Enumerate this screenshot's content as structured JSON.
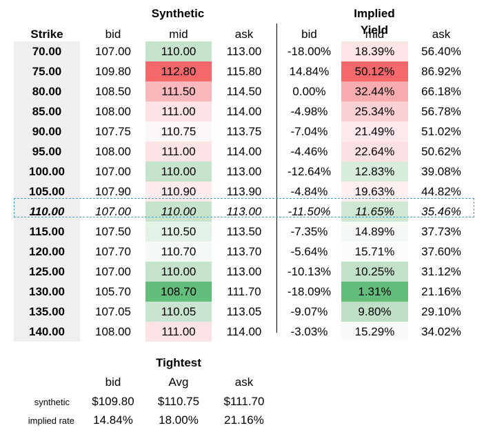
{
  "headers": {
    "synthetic": "Synthetic",
    "implied_yield": "Implied Yield",
    "strike": "Strike",
    "bid": "bid",
    "mid": "mid",
    "ask": "ask"
  },
  "rows": [
    {
      "strike": "70.00",
      "s_bid": "107.00",
      "s_mid": "110.00",
      "s_ask": "113.00",
      "y_bid": "-18.00%",
      "y_mid": "18.39%",
      "y_ask": "56.40%",
      "s_mid_color": "#c6e3cc",
      "y_mid_color": "#fde5e8"
    },
    {
      "strike": "75.00",
      "s_bid": "109.80",
      "s_mid": "112.80",
      "s_ask": "115.80",
      "y_bid": "14.84%",
      "y_mid": "50.12%",
      "y_ask": "86.92%",
      "s_mid_color": "#f4686b",
      "y_mid_color": "#f4686b"
    },
    {
      "strike": "80.00",
      "s_bid": "108.50",
      "s_mid": "111.50",
      "s_ask": "114.50",
      "y_bid": "0.00%",
      "y_mid": "32.44%",
      "y_ask": "66.18%",
      "s_mid_color": "#f9b8bc",
      "y_mid_color": "#f8acaf"
    },
    {
      "strike": "85.00",
      "s_bid": "108.00",
      "s_mid": "111.00",
      "s_ask": "114.00",
      "y_bid": "-4.98%",
      "y_mid": "25.34%",
      "y_ask": "56.78%",
      "s_mid_color": "#fce3e6",
      "y_mid_color": "#fad0d3"
    },
    {
      "strike": "90.00",
      "s_bid": "107.75",
      "s_mid": "110.75",
      "s_ask": "113.75",
      "y_bid": "-7.04%",
      "y_mid": "21.49%",
      "y_ask": "51.02%",
      "s_mid_color": "#fbf6f8",
      "y_mid_color": "#fde8eb"
    },
    {
      "strike": "95.00",
      "s_bid": "108.00",
      "s_mid": "111.00",
      "s_ask": "114.00",
      "y_bid": "-4.46%",
      "y_mid": "22.64%",
      "y_ask": "50.62%",
      "s_mid_color": "#fce3e6",
      "y_mid_color": "#fce1e4"
    },
    {
      "strike": "100.00",
      "s_bid": "107.00",
      "s_mid": "110.00",
      "s_ask": "113.00",
      "y_bid": "-12.64%",
      "y_mid": "12.83%",
      "y_ask": "39.08%",
      "s_mid_color": "#c6e3cc",
      "y_mid_color": "#d8ecdc"
    },
    {
      "strike": "105.00",
      "s_bid": "107.90",
      "s_mid": "110.90",
      "s_ask": "113.90",
      "y_bid": "-4.84%",
      "y_mid": "19.63%",
      "y_ask": "44.82%",
      "s_mid_color": "#fdeaed",
      "y_mid_color": "#fdeef0"
    },
    {
      "strike": "110.00",
      "s_bid": "107.00",
      "s_mid": "110.00",
      "s_ask": "113.00",
      "y_bid": "-11.50%",
      "y_mid": "11.65%",
      "y_ask": "35.46%",
      "s_mid_color": "#c6e3cc",
      "y_mid_color": "#cfe8d4"
    },
    {
      "strike": "115.00",
      "s_bid": "107.50",
      "s_mid": "110.50",
      "s_ask": "113.50",
      "y_bid": "-7.35%",
      "y_mid": "14.89%",
      "y_ask": "37.73%",
      "s_mid_color": "#e3f2e6",
      "y_mid_color": "#f4f9f5"
    },
    {
      "strike": "120.00",
      "s_bid": "107.70",
      "s_mid": "110.70",
      "s_ask": "113.70",
      "y_bid": "-5.64%",
      "y_mid": "15.71%",
      "y_ask": "37.60%",
      "s_mid_color": "#f4f9f5",
      "y_mid_color": "#fcfcfc"
    },
    {
      "strike": "125.00",
      "s_bid": "107.00",
      "s_mid": "110.00",
      "s_ask": "113.00",
      "y_bid": "-10.13%",
      "y_mid": "10.25%",
      "y_ask": "31.12%",
      "s_mid_color": "#c6e3cc",
      "y_mid_color": "#c2e1c9"
    },
    {
      "strike": "130.00",
      "s_bid": "105.70",
      "s_mid": "108.70",
      "s_ask": "111.70",
      "y_bid": "-18.09%",
      "y_mid": "1.31%",
      "y_ask": "21.16%",
      "s_mid_color": "#63be7b",
      "y_mid_color": "#63be7b"
    },
    {
      "strike": "135.00",
      "s_bid": "107.05",
      "s_mid": "110.05",
      "s_ask": "113.05",
      "y_bid": "-9.07%",
      "y_mid": "9.80%",
      "y_ask": "29.10%",
      "s_mid_color": "#c9e5cf",
      "y_mid_color": "#bfe0c6"
    },
    {
      "strike": "140.00",
      "s_bid": "108.00",
      "s_mid": "111.00",
      "s_ask": "114.00",
      "y_bid": "-3.03%",
      "y_mid": "15.29%",
      "y_ask": "34.02%",
      "s_mid_color": "#fce3e6",
      "y_mid_color": "#f9fbfa"
    }
  ],
  "selected_row_index": 8,
  "tightest": {
    "title": "Tightest",
    "col_bid": "bid",
    "col_avg": "Avg",
    "col_ask": "ask",
    "synthetic": {
      "label": "synthetic",
      "bid": "$109.80",
      "avg": "$110.75",
      "ask": "$111.70"
    },
    "implied_rate": {
      "label": "implied rate",
      "bid": "14.84%",
      "avg": "18.00%",
      "ask": "21.16%"
    }
  }
}
